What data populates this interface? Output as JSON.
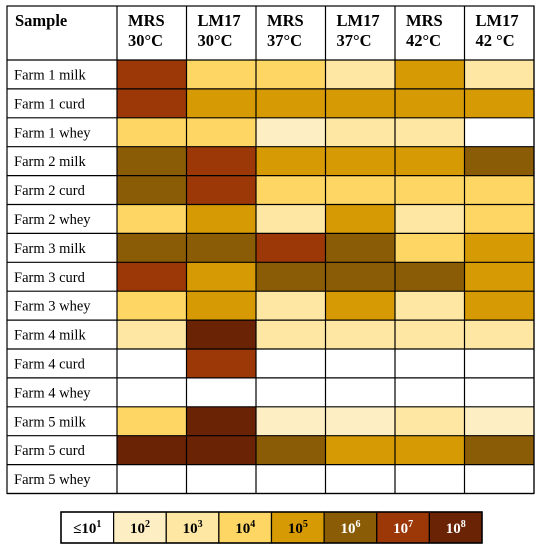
{
  "chart_data": {
    "type": "heatmap",
    "corner_label": "Sample",
    "columns": [
      {
        "medium": "MRS",
        "temperature": "30°C"
      },
      {
        "medium": "LM17",
        "temperature": "30°C"
      },
      {
        "medium": "MRS",
        "temperature": "37°C"
      },
      {
        "medium": "LM17",
        "temperature": "37°C"
      },
      {
        "medium": "MRS",
        "temperature": "42°C"
      },
      {
        "medium": "LM17",
        "temperature": "42 °C"
      }
    ],
    "rows": [
      "Farm 1 milk",
      "Farm 1 curd",
      "Farm 1 whey",
      "Farm 2 milk",
      "Farm 2 curd",
      "Farm 2 whey",
      "Farm 3 milk",
      "Farm 3 curd",
      "Farm 3 whey",
      "Farm 4 milk",
      "Farm 4 curd",
      "Farm 4 whey",
      "Farm 5 milk",
      "Farm 5 curd",
      "Farm 5 whey"
    ],
    "values_log10": [
      [
        7,
        4,
        4,
        3,
        5,
        3
      ],
      [
        7,
        5,
        5,
        5,
        5,
        5
      ],
      [
        4,
        4,
        2,
        3,
        3,
        1
      ],
      [
        6,
        7,
        5,
        5,
        5,
        6
      ],
      [
        6,
        7,
        4,
        4,
        4,
        4
      ],
      [
        4,
        5,
        3,
        5,
        3,
        4
      ],
      [
        6,
        6,
        7,
        6,
        4,
        5
      ],
      [
        7,
        5,
        6,
        6,
        6,
        5
      ],
      [
        4,
        5,
        3,
        5,
        3,
        5
      ],
      [
        3,
        8,
        3,
        3,
        3,
        3
      ],
      [
        1,
        7,
        1,
        1,
        1,
        1
      ],
      [
        1,
        1,
        1,
        1,
        1,
        1
      ],
      [
        4,
        8,
        2,
        2,
        3,
        2
      ],
      [
        8,
        8,
        6,
        5,
        5,
        6
      ],
      [
        1,
        1,
        1,
        1,
        1,
        1
      ]
    ],
    "legend": [
      {
        "level": 1,
        "label_base": "≤10",
        "exponent": "1",
        "color": "#ffffff",
        "text_color": "#000000"
      },
      {
        "level": 2,
        "label_base": "10",
        "exponent": "2",
        "color": "#feeec4",
        "text_color": "#000000"
      },
      {
        "level": 3,
        "label_base": "10",
        "exponent": "3",
        "color": "#fde7a2",
        "text_color": "#000000"
      },
      {
        "level": 4,
        "label_base": "10",
        "exponent": "4",
        "color": "#fdd663",
        "text_color": "#000000"
      },
      {
        "level": 5,
        "label_base": "10",
        "exponent": "5",
        "color": "#d69a05",
        "text_color": "#000000"
      },
      {
        "level": 6,
        "label_base": "10",
        "exponent": "6",
        "color": "#8a5c05",
        "text_color": "#ffffff"
      },
      {
        "level": 7,
        "label_base": "10",
        "exponent": "7",
        "color": "#9c3807",
        "text_color": "#ffffff"
      },
      {
        "level": 8,
        "label_base": "10",
        "exponent": "8",
        "color": "#6a2304",
        "text_color": "#ffffff"
      }
    ],
    "legend_placement": "bottom"
  }
}
